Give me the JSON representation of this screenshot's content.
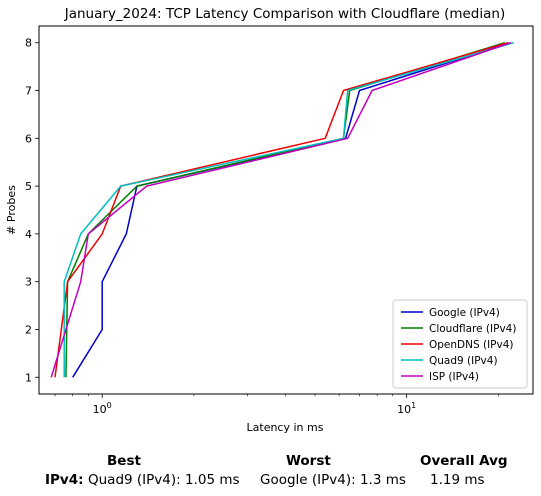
{
  "chart_data": {
    "type": "line",
    "title": "January_2024: TCP Latency Comparison with Cloudflare (median)",
    "xlabel": "Latency in ms",
    "ylabel": "# Probes",
    "xscale": "log",
    "xlim": [
      0.62,
      26
    ],
    "ylim": [
      0.65,
      8.35
    ],
    "x_ticks": [
      {
        "value": 1,
        "label": "10",
        "exp": "0"
      },
      {
        "value": 10,
        "label": "10",
        "exp": "1"
      }
    ],
    "y_ticks": [
      1,
      2,
      3,
      4,
      5,
      6,
      7,
      8
    ],
    "legend": "lower-right",
    "grid": false,
    "series": [
      {
        "name": "Google (IPv4)",
        "color": "#0000cc",
        "points": [
          [
            0.8,
            1
          ],
          [
            1.0,
            2
          ],
          [
            1.0,
            3
          ],
          [
            1.2,
            4
          ],
          [
            1.3,
            5
          ],
          [
            6.3,
            6
          ],
          [
            7.0,
            7
          ],
          [
            22.0,
            8
          ]
        ]
      },
      {
        "name": "Cloudflare (IPv4)",
        "color": "#008000",
        "points": [
          [
            0.76,
            1
          ],
          [
            0.77,
            3
          ],
          [
            0.9,
            4
          ],
          [
            1.3,
            5
          ],
          [
            6.2,
            6
          ],
          [
            6.5,
            7
          ],
          [
            21.0,
            8
          ]
        ]
      },
      {
        "name": "OpenDNS (IPv4)",
        "color": "#ee0000",
        "points": [
          [
            0.7,
            1
          ],
          [
            0.77,
            3
          ],
          [
            1.0,
            4
          ],
          [
            1.15,
            5
          ],
          [
            5.4,
            6
          ],
          [
            6.2,
            7
          ],
          [
            21.5,
            8
          ]
        ]
      },
      {
        "name": "Quad9 (IPv4)",
        "color": "#00bfbf",
        "points": [
          [
            0.75,
            1
          ],
          [
            0.75,
            3
          ],
          [
            0.85,
            4
          ],
          [
            1.15,
            5
          ],
          [
            6.2,
            6
          ],
          [
            6.4,
            7
          ],
          [
            22.5,
            8
          ]
        ]
      },
      {
        "name": "ISP (IPv4)",
        "color": "#bf00bf",
        "points": [
          [
            0.68,
            1
          ],
          [
            0.85,
            3
          ],
          [
            0.9,
            4
          ],
          [
            1.4,
            5
          ],
          [
            6.4,
            6
          ],
          [
            7.7,
            7
          ],
          [
            22.0,
            8
          ]
        ]
      }
    ]
  },
  "stats": {
    "best_label": "Best",
    "worst_label": "Worst",
    "avg_label": "Overall Avg",
    "row_label": "IPv4:",
    "best_value": "Quad9 (IPv4): 1.05 ms",
    "worst_value": "Google (IPv4): 1.3 ms",
    "avg_value": "1.19 ms"
  }
}
